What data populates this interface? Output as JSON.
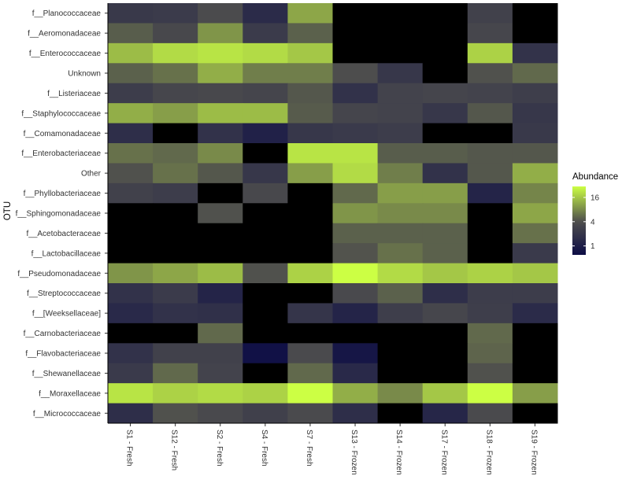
{
  "chart_data": {
    "type": "heatmap",
    "ylabel": "OTU",
    "x": [
      "S1 - Fresh",
      "S12 - Fresh",
      "S2 - Fresh",
      "S4 - Fresh",
      "S7 - Fresh",
      "S13 - Frozen",
      "S14 - Frozen",
      "S17 - Frozen",
      "S18 - Frozen",
      "S19 - Frozen"
    ],
    "y": [
      "f__Planococcaceae",
      "f__Aeromonadaceae",
      "f__Enterococcaceae",
      "Unknown",
      "f__Listeriaceae",
      "f__Staphylococcaceae",
      "f__Comamonadaceae",
      "f__Enterobacteriaceae",
      "Other",
      "f__Phyllobacteriaceae",
      "f__Sphingomonadaceae",
      "f__Acetobacteraceae",
      "f__Lactobacillaceae",
      "f__Pseudomonadaceae",
      "f__Streptococcaceae",
      "f__[Weeksellaceae]",
      "f__Carnobacteriaceae",
      "f__Flavobacteriaceae",
      "f__Shewanellaceae",
      "f__Moraxellaceae",
      "f__Micrococcaceae"
    ],
    "values": [
      [
        2.2,
        2.4,
        3.8,
        1.5,
        11,
        0,
        0,
        0,
        2.8,
        0
      ],
      [
        4.8,
        3.5,
        9,
        2.4,
        5,
        0,
        0,
        0,
        3.3,
        0
      ],
      [
        14,
        20,
        22,
        20,
        16,
        0,
        0,
        0,
        18,
        1.9
      ],
      [
        5,
        6,
        12,
        7,
        7,
        4,
        2.1,
        0,
        4.2,
        5.5
      ],
      [
        2.5,
        3.3,
        3.5,
        3.2,
        4.5,
        1.8,
        3,
        3.2,
        3,
        2.6
      ],
      [
        12,
        10,
        14,
        14,
        4.7,
        3.2,
        3,
        2.1,
        4.5,
        2.1
      ],
      [
        1.6,
        0,
        1.8,
        1.1,
        2.1,
        2.3,
        2.5,
        0,
        0,
        2.2
      ],
      [
        6,
        5.5,
        8,
        0,
        22,
        22,
        4.8,
        4.8,
        4.5,
        4.5
      ],
      [
        4.2,
        6,
        4.5,
        2.1,
        10,
        20,
        7,
        1.8,
        4.5,
        12
      ],
      [
        2.8,
        2.5,
        0,
        3.5,
        0,
        5.5,
        10,
        10,
        1.2,
        7.5
      ],
      [
        0,
        0,
        4.2,
        0,
        0,
        9,
        8,
        8,
        0,
        11
      ],
      [
        0,
        0,
        0,
        0,
        0,
        5,
        5,
        5,
        0,
        6
      ],
      [
        0,
        0,
        0,
        0,
        0,
        4.3,
        6,
        5,
        0,
        2.3
      ],
      [
        9,
        11,
        14,
        4.2,
        18,
        30,
        20,
        16,
        18,
        16
      ],
      [
        1.8,
        2.4,
        1.2,
        0,
        0,
        3.6,
        5,
        1.6,
        2.5,
        2.5
      ],
      [
        1.4,
        1.8,
        1.7,
        0,
        2,
        1.2,
        2.6,
        3.3,
        2.6,
        1.5
      ],
      [
        0,
        0,
        5.5,
        0,
        0,
        0,
        0,
        0,
        5.5,
        0
      ],
      [
        1.8,
        2.8,
        2.8,
        0.7,
        3.7,
        0.8,
        0,
        0,
        5.2,
        0
      ],
      [
        2.3,
        5.5,
        3,
        0,
        5.5,
        1.4,
        0,
        0,
        4.2,
        0
      ],
      [
        22,
        18,
        20,
        18,
        32,
        12,
        8,
        16,
        30,
        10
      ],
      [
        1.6,
        4.2,
        3.6,
        2.7,
        3.7,
        1.6,
        0,
        1.3,
        3.7,
        0
      ]
    ],
    "legend": {
      "title": "Abundance",
      "position": "right",
      "breaks": [
        1,
        4,
        16
      ],
      "break_labels": [
        "1",
        "4",
        "16"
      ],
      "colors": {
        "low": "#0c0c45",
        "mid": "#4d4d4d",
        "high": "#ccff44",
        "zero": "#000000"
      },
      "range": [
        0.6,
        30
      ]
    }
  }
}
